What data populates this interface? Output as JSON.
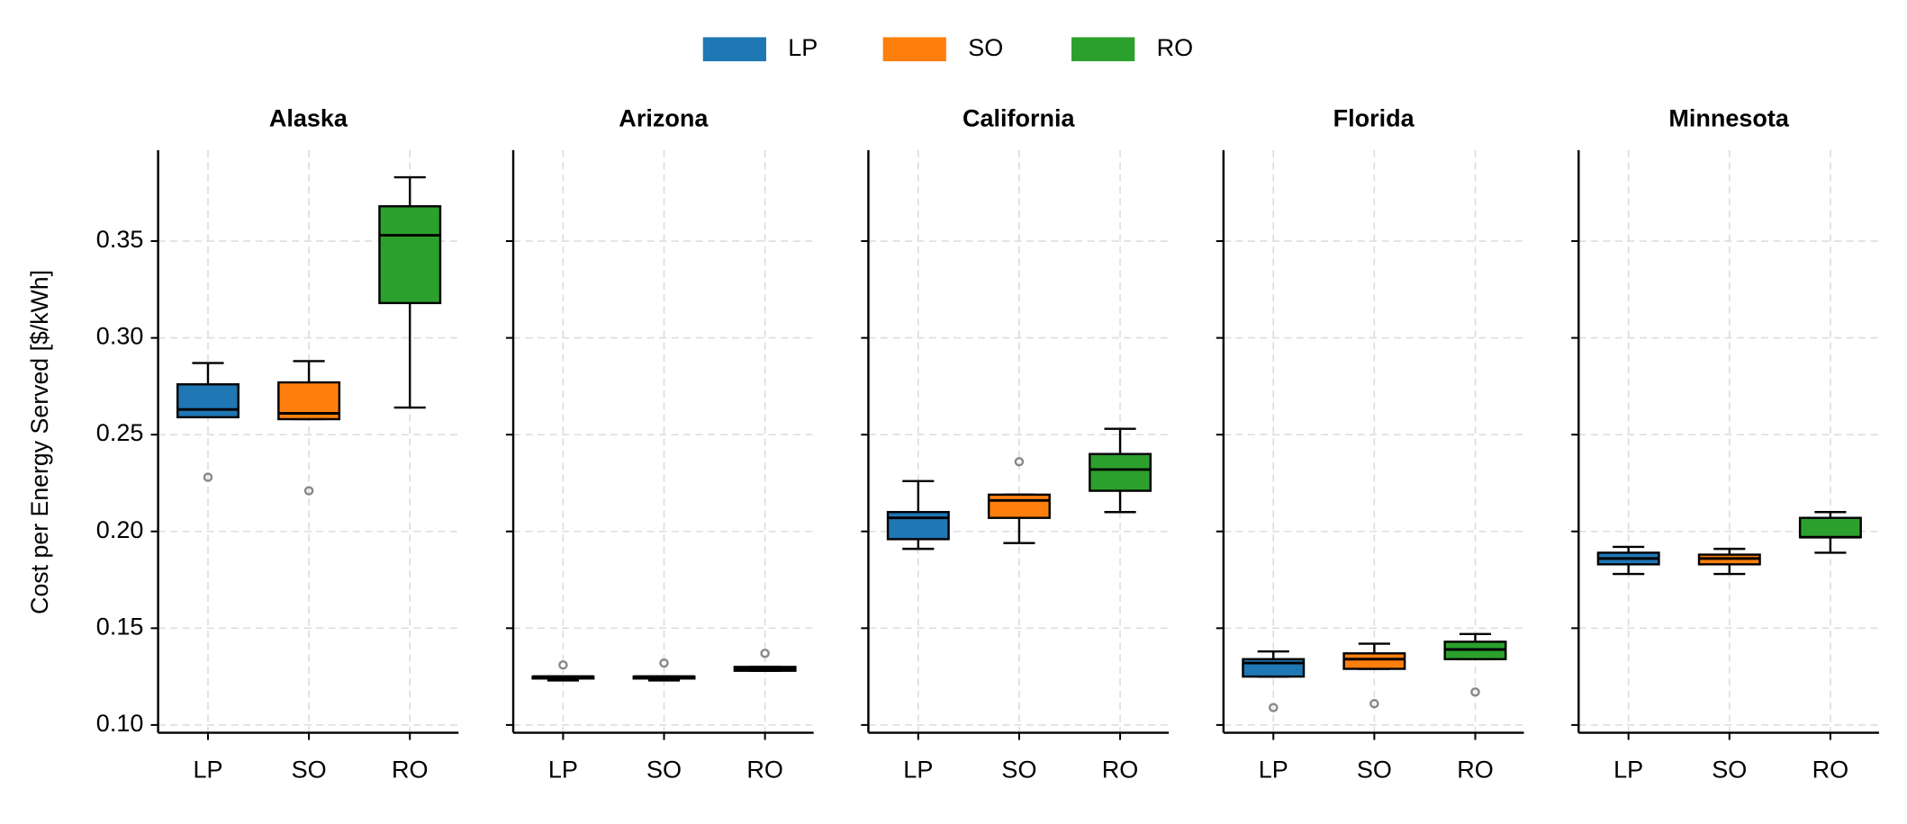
{
  "chart_data": {
    "type": "box",
    "ylabel": "Cost per Energy Served [$/kWh]",
    "series": [
      {
        "name": "LP",
        "color": "#1f77b4"
      },
      {
        "name": "SO",
        "color": "#ff7f0e"
      },
      {
        "name": "RO",
        "color": "#2ca02c"
      }
    ],
    "categories": [
      "LP",
      "SO",
      "RO"
    ],
    "ylim": [
      0.096,
      0.397
    ],
    "yticks": [
      {
        "value": 0.1,
        "label": "0.10"
      },
      0.15,
      {
        "value": 0.2,
        "label": "0.20"
      },
      0.25,
      {
        "value": 0.3,
        "label": "0.30"
      },
      0.35
    ],
    "grid": true,
    "panels": [
      {
        "title": "Alaska",
        "boxes": [
          {
            "whislo": 0.259,
            "q1": 0.259,
            "med": 0.263,
            "q3": 0.276,
            "whishi": 0.287,
            "fliers": [
              0.228
            ]
          },
          {
            "whislo": 0.258,
            "q1": 0.258,
            "med": 0.261,
            "q3": 0.277,
            "whishi": 0.288,
            "fliers": [
              0.221
            ]
          },
          {
            "whislo": 0.264,
            "q1": 0.318,
            "med": 0.353,
            "q3": 0.368,
            "whishi": 0.383,
            "fliers": []
          }
        ]
      },
      {
        "title": "Arizona",
        "boxes": [
          {
            "whislo": 0.123,
            "q1": 0.124,
            "med": 0.125,
            "q3": 0.125,
            "whishi": 0.125,
            "fliers": [
              0.131
            ]
          },
          {
            "whislo": 0.123,
            "q1": 0.124,
            "med": 0.125,
            "q3": 0.125,
            "whishi": 0.125,
            "fliers": [
              0.132
            ]
          },
          {
            "whislo": 0.128,
            "q1": 0.128,
            "med": 0.129,
            "q3": 0.13,
            "whishi": 0.13,
            "fliers": [
              0.137
            ]
          }
        ]
      },
      {
        "title": "California",
        "boxes": [
          {
            "whislo": 0.191,
            "q1": 0.196,
            "med": 0.207,
            "q3": 0.21,
            "whishi": 0.226,
            "fliers": []
          },
          {
            "whislo": 0.194,
            "q1": 0.207,
            "med": 0.216,
            "q3": 0.219,
            "whishi": 0.219,
            "fliers": [
              0.236
            ]
          },
          {
            "whislo": 0.21,
            "q1": 0.221,
            "med": 0.232,
            "q3": 0.24,
            "whishi": 0.253,
            "fliers": []
          }
        ]
      },
      {
        "title": "Florida",
        "boxes": [
          {
            "whislo": 0.125,
            "q1": 0.125,
            "med": 0.132,
            "q3": 0.134,
            "whishi": 0.138,
            "fliers": [
              0.109
            ]
          },
          {
            "whislo": 0.129,
            "q1": 0.129,
            "med": 0.134,
            "q3": 0.137,
            "whishi": 0.142,
            "fliers": [
              0.111
            ]
          },
          {
            "whislo": 0.134,
            "q1": 0.134,
            "med": 0.139,
            "q3": 0.143,
            "whishi": 0.147,
            "fliers": [
              0.117
            ]
          }
        ]
      },
      {
        "title": "Minnesota",
        "boxes": [
          {
            "whislo": 0.178,
            "q1": 0.183,
            "med": 0.186,
            "q3": 0.189,
            "whishi": 0.192,
            "fliers": []
          },
          {
            "whislo": 0.178,
            "q1": 0.183,
            "med": 0.186,
            "q3": 0.188,
            "whishi": 0.191,
            "fliers": []
          },
          {
            "whislo": 0.189,
            "q1": 0.197,
            "med": 0.197,
            "q3": 0.207,
            "whishi": 0.21,
            "fliers": []
          }
        ]
      }
    ]
  }
}
